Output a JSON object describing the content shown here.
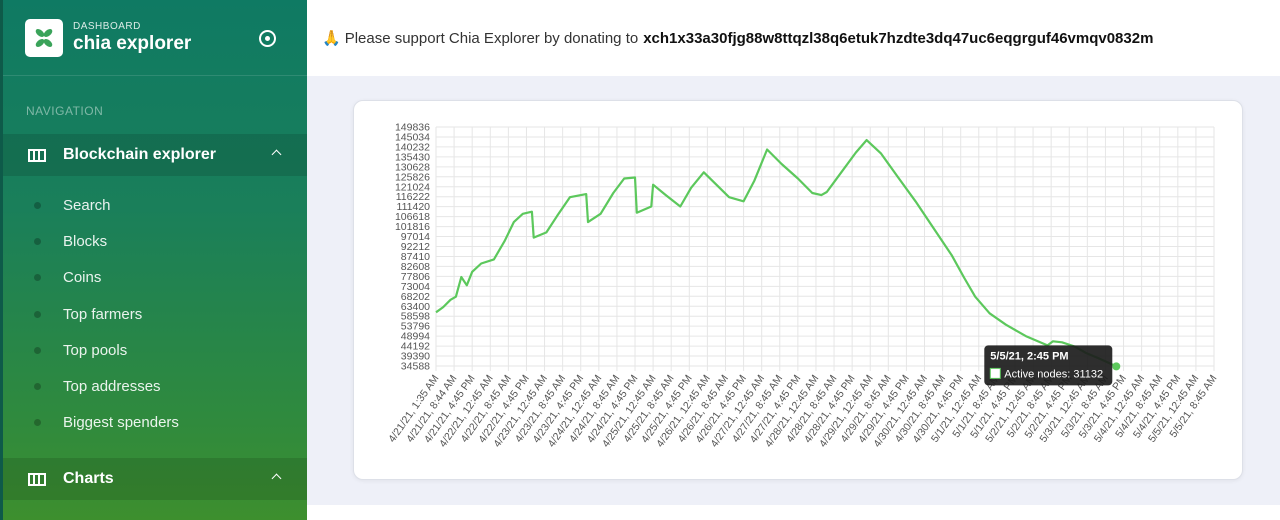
{
  "sidebar": {
    "brand_sub": "DASHBOARD",
    "brand_title": "chia explorer",
    "nav_header": "NAVIGATION",
    "section1": "Blockchain explorer",
    "items": [
      "Search",
      "Blocks",
      "Coins",
      "Top farmers",
      "Top pools",
      "Top addresses",
      "Biggest spenders"
    ],
    "section2": "Charts"
  },
  "topbar": {
    "emoji": "🙏",
    "message": "Please support Chia Explorer by donating to",
    "address": "xch1x33a30fjg88w8ttqzl38q6etuk7hzdte3dq47uc6eqgrguf46vmqv0832m"
  },
  "chart_data": {
    "type": "line",
    "series": [
      {
        "name": "Active nodes",
        "color": "#5cc85c"
      }
    ],
    "y_ticks": [
      "149836",
      "145034",
      "140232",
      "135430",
      "130628",
      "125826",
      "121024",
      "116222",
      "111420",
      "106618",
      "101816",
      "97014",
      "92212",
      "87410",
      "82608",
      "77806",
      "73004",
      "68202",
      "63400",
      "58598",
      "53796",
      "48994",
      "44192",
      "39390",
      "34588"
    ],
    "ylim": [
      34588,
      149836
    ],
    "x_ticks": [
      "4/21/21, 1:35 AM",
      "4/21/21, 8:44 AM",
      "4/21/21, 4:45 PM",
      "4/22/21, 12:45 AM",
      "4/22/21, 8:45 AM",
      "4/22/21, 4:45 PM",
      "4/23/21, 12:45 AM",
      "4/23/21, 8:45 AM",
      "4/23/21, 4:45 PM",
      "4/24/21, 12:45 AM",
      "4/24/21, 8:45 AM",
      "4/24/21, 4:45 PM",
      "4/25/21, 12:45 AM",
      "4/25/21, 8:45 AM",
      "4/25/21, 4:45 PM",
      "4/26/21, 12:45 AM",
      "4/26/21, 8:45 AM",
      "4/26/21, 4:45 PM",
      "4/27/21, 12:45 AM",
      "4/27/21, 8:45 AM",
      "4/27/21, 4:45 PM",
      "4/28/21, 12:45 AM",
      "4/28/21, 8:45 AM",
      "4/28/21, 4:45 PM",
      "4/29/21, 12:45 AM",
      "4/29/21, 8:45 AM",
      "4/29/21, 4:45 PM",
      "4/30/21, 12:45 AM",
      "4/30/21, 8:45 AM",
      "4/30/21, 4:45 PM",
      "5/1/21, 12:45 AM",
      "5/1/21, 8:45 AM",
      "5/1/21, 4:45 PM",
      "5/2/21, 12:45 AM",
      "5/2/21, 8:45 AM",
      "5/2/21, 4:45 PM",
      "5/3/21, 12:45 AM",
      "5/3/21, 8:45 AM",
      "5/3/21, 4:45 PM",
      "5/4/21, 12:45 AM",
      "5/4/21, 8:45 AM",
      "5/4/21, 4:45 PM",
      "5/5/21, 12:45 AM",
      "5/5/21, 8:45 AM"
    ],
    "points": [
      [
        0,
        60500
      ],
      [
        0.4,
        63000
      ],
      [
        0.8,
        66500
      ],
      [
        1.1,
        68000
      ],
      [
        1.4,
        77500
      ],
      [
        1.7,
        73500
      ],
      [
        2.0,
        80000
      ],
      [
        2.5,
        84000
      ],
      [
        3.2,
        86000
      ],
      [
        3.8,
        95000
      ],
      [
        4.3,
        104000
      ],
      [
        4.8,
        108000
      ],
      [
        5.3,
        109000
      ],
      [
        5.4,
        96500
      ],
      [
        6.1,
        99000
      ],
      [
        6.7,
        107000
      ],
      [
        7.4,
        116000
      ],
      [
        8.3,
        117500
      ],
      [
        8.4,
        104000
      ],
      [
        9.1,
        108000
      ],
      [
        9.8,
        118000
      ],
      [
        10.4,
        125000
      ],
      [
        11.0,
        125500
      ],
      [
        11.1,
        108500
      ],
      [
        11.9,
        111500
      ],
      [
        12.0,
        122000
      ],
      [
        12.7,
        117000
      ],
      [
        13.5,
        111500
      ],
      [
        14.1,
        120500
      ],
      [
        14.8,
        128000
      ],
      [
        15.5,
        122000
      ],
      [
        16.2,
        116000
      ],
      [
        16.8,
        114500
      ],
      [
        17.0,
        114000
      ],
      [
        17.6,
        124000
      ],
      [
        18.3,
        139000
      ],
      [
        19.1,
        132000
      ],
      [
        20.0,
        125000
      ],
      [
        20.8,
        118000
      ],
      [
        21.3,
        117000
      ],
      [
        21.6,
        118500
      ],
      [
        22.4,
        128000
      ],
      [
        23.2,
        137500
      ],
      [
        23.8,
        143500
      ],
      [
        24.6,
        137000
      ],
      [
        25.5,
        126000
      ],
      [
        26.5,
        114000
      ],
      [
        27.5,
        101000
      ],
      [
        28.5,
        88000
      ],
      [
        29.2,
        77000
      ],
      [
        29.8,
        68000
      ],
      [
        30.6,
        60000
      ],
      [
        31.5,
        54500
      ],
      [
        32.6,
        49000
      ],
      [
        33.8,
        44500
      ],
      [
        34.1,
        46500
      ],
      [
        34.6,
        46000
      ],
      [
        35.3,
        44000
      ],
      [
        35.9,
        41000
      ],
      [
        36.7,
        38000
      ],
      [
        37.6,
        34400
      ]
    ],
    "grid": true,
    "tooltip": {
      "title": "5/5/21, 2:45 PM",
      "label": "Active nodes: 31132"
    }
  }
}
